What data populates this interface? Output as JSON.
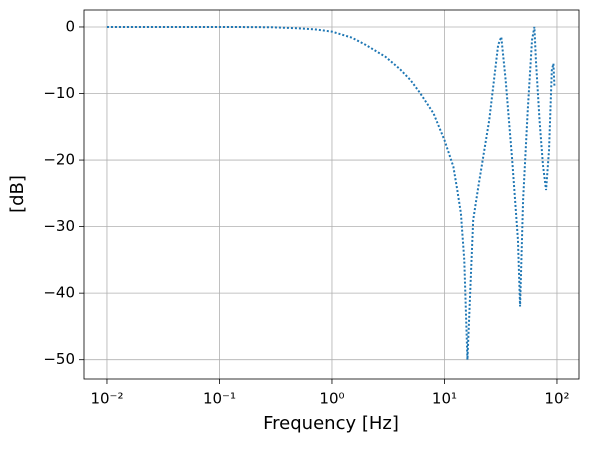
{
  "chart_data": {
    "type": "line",
    "xlabel": "Frequency [Hz]",
    "ylabel": "[dB]",
    "xscale": "log",
    "grid": true,
    "xlim": [
      0.00625,
      157
    ],
    "ylim": [
      -52.9,
      2.55
    ],
    "xticks": [
      {
        "value": 0.01,
        "label": "10⁻²"
      },
      {
        "value": 0.1,
        "label": "10⁻¹"
      },
      {
        "value": 1,
        "label": "10⁰"
      },
      {
        "value": 10,
        "label": "10¹"
      },
      {
        "value": 100,
        "label": "10²"
      }
    ],
    "yticks": [
      0,
      {
        "value": -10,
        "label": "−10"
      },
      {
        "value": -20,
        "label": "−20"
      },
      {
        "value": -30,
        "label": "−30"
      },
      {
        "value": -40,
        "label": "−40"
      },
      {
        "value": -50,
        "label": "−50"
      }
    ],
    "x": [
      0.01,
      0.03,
      0.1,
      0.2,
      0.3,
      0.5,
      0.7,
      1,
      1.5,
      2,
      3,
      4,
      5,
      6,
      7,
      8,
      10,
      12,
      13,
      14,
      15,
      16,
      18,
      20,
      25,
      30,
      32,
      35,
      40,
      45,
      47,
      50,
      55,
      60,
      63,
      65,
      70,
      75,
      80,
      85,
      90,
      93,
      95
    ],
    "series": [
      {
        "color": "#1f77b4",
        "line_style": "dotted",
        "values": [
          0,
          0,
          0,
          -0.02,
          -0.05,
          -0.2,
          -0.35,
          -0.7,
          -1.6,
          -2.7,
          -4.5,
          -6.3,
          -8,
          -9.8,
          -11.5,
          -13,
          -17,
          -21,
          -24.5,
          -28,
          -35,
          -50,
          -29,
          -24,
          -14,
          -2.7,
          -1.5,
          -8,
          -20,
          -32,
          -42,
          -26,
          -12.5,
          -2,
          0,
          -5,
          -14,
          -20.7,
          -24.5,
          -18.5,
          -6.5,
          -5.5,
          -9
        ]
      }
    ]
  }
}
